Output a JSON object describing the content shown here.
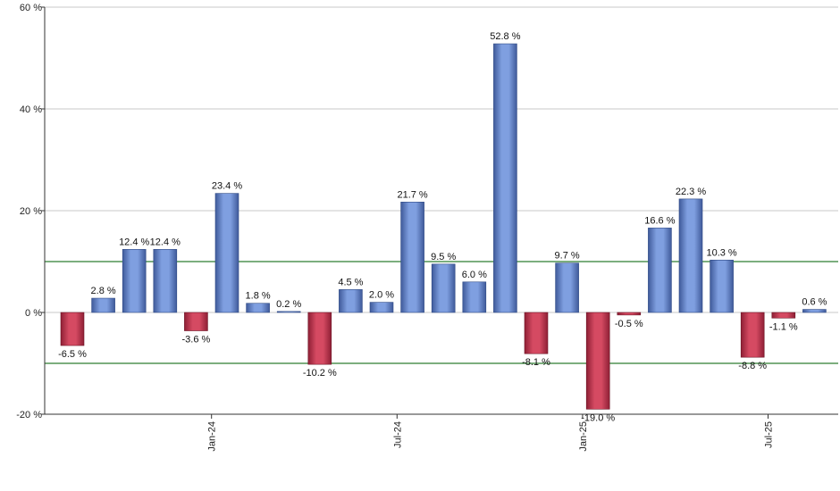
{
  "chart_data": {
    "type": "bar",
    "title": "",
    "xlabel": "",
    "ylabel": "",
    "ylim": [
      -20,
      60
    ],
    "y_ticks": [
      -20,
      0,
      20,
      40,
      60
    ],
    "y_tick_labels": [
      "-20 %",
      "0 %",
      "20 %",
      "40 %",
      "60 %"
    ],
    "grid": true,
    "reference_lines": [
      10,
      -10
    ],
    "x_tick_labels": [
      {
        "bar_index": 4.5,
        "label": "Jan-24"
      },
      {
        "bar_index": 10.5,
        "label": "Jul-24"
      },
      {
        "bar_index": 16.5,
        "label": "Jan-25"
      },
      {
        "bar_index": 22.5,
        "label": "Jul-25"
      }
    ],
    "values": [
      -6.5,
      2.8,
      12.4,
      12.4,
      -3.6,
      23.4,
      1.8,
      0.2,
      -10.2,
      4.5,
      2.0,
      21.7,
      9.5,
      6.0,
      52.8,
      -8.1,
      9.7,
      -19.0,
      -0.5,
      16.6,
      22.3,
      10.3,
      -8.8,
      -1.1,
      0.6
    ],
    "data_labels": [
      "-6.5 %",
      "2.8 %",
      "12.4 %",
      "12.4 %",
      "-3.6 %",
      "23.4 %",
      "1.8 %",
      "0.2 %",
      "-10.2 %",
      "4.5 %",
      "2.0 %",
      "21.7 %",
      "9.5 %",
      "6.0 %",
      "52.8 %",
      "-8.1 %",
      "9.7 %",
      "-19.0 %",
      "-0.5 %",
      "16.6 %",
      "22.3 %",
      "10.3 %",
      "-8.8 %",
      "-1.1 %",
      "0.6 %"
    ],
    "colors": {
      "positive": "#7f9fe0",
      "positive_dark": "#3f5a9a",
      "negative": "#d54a62",
      "negative_dark": "#8e1f35",
      "reference_line": "#2e7d32",
      "grid": "#c8c8c8",
      "axis": "#333333"
    }
  }
}
